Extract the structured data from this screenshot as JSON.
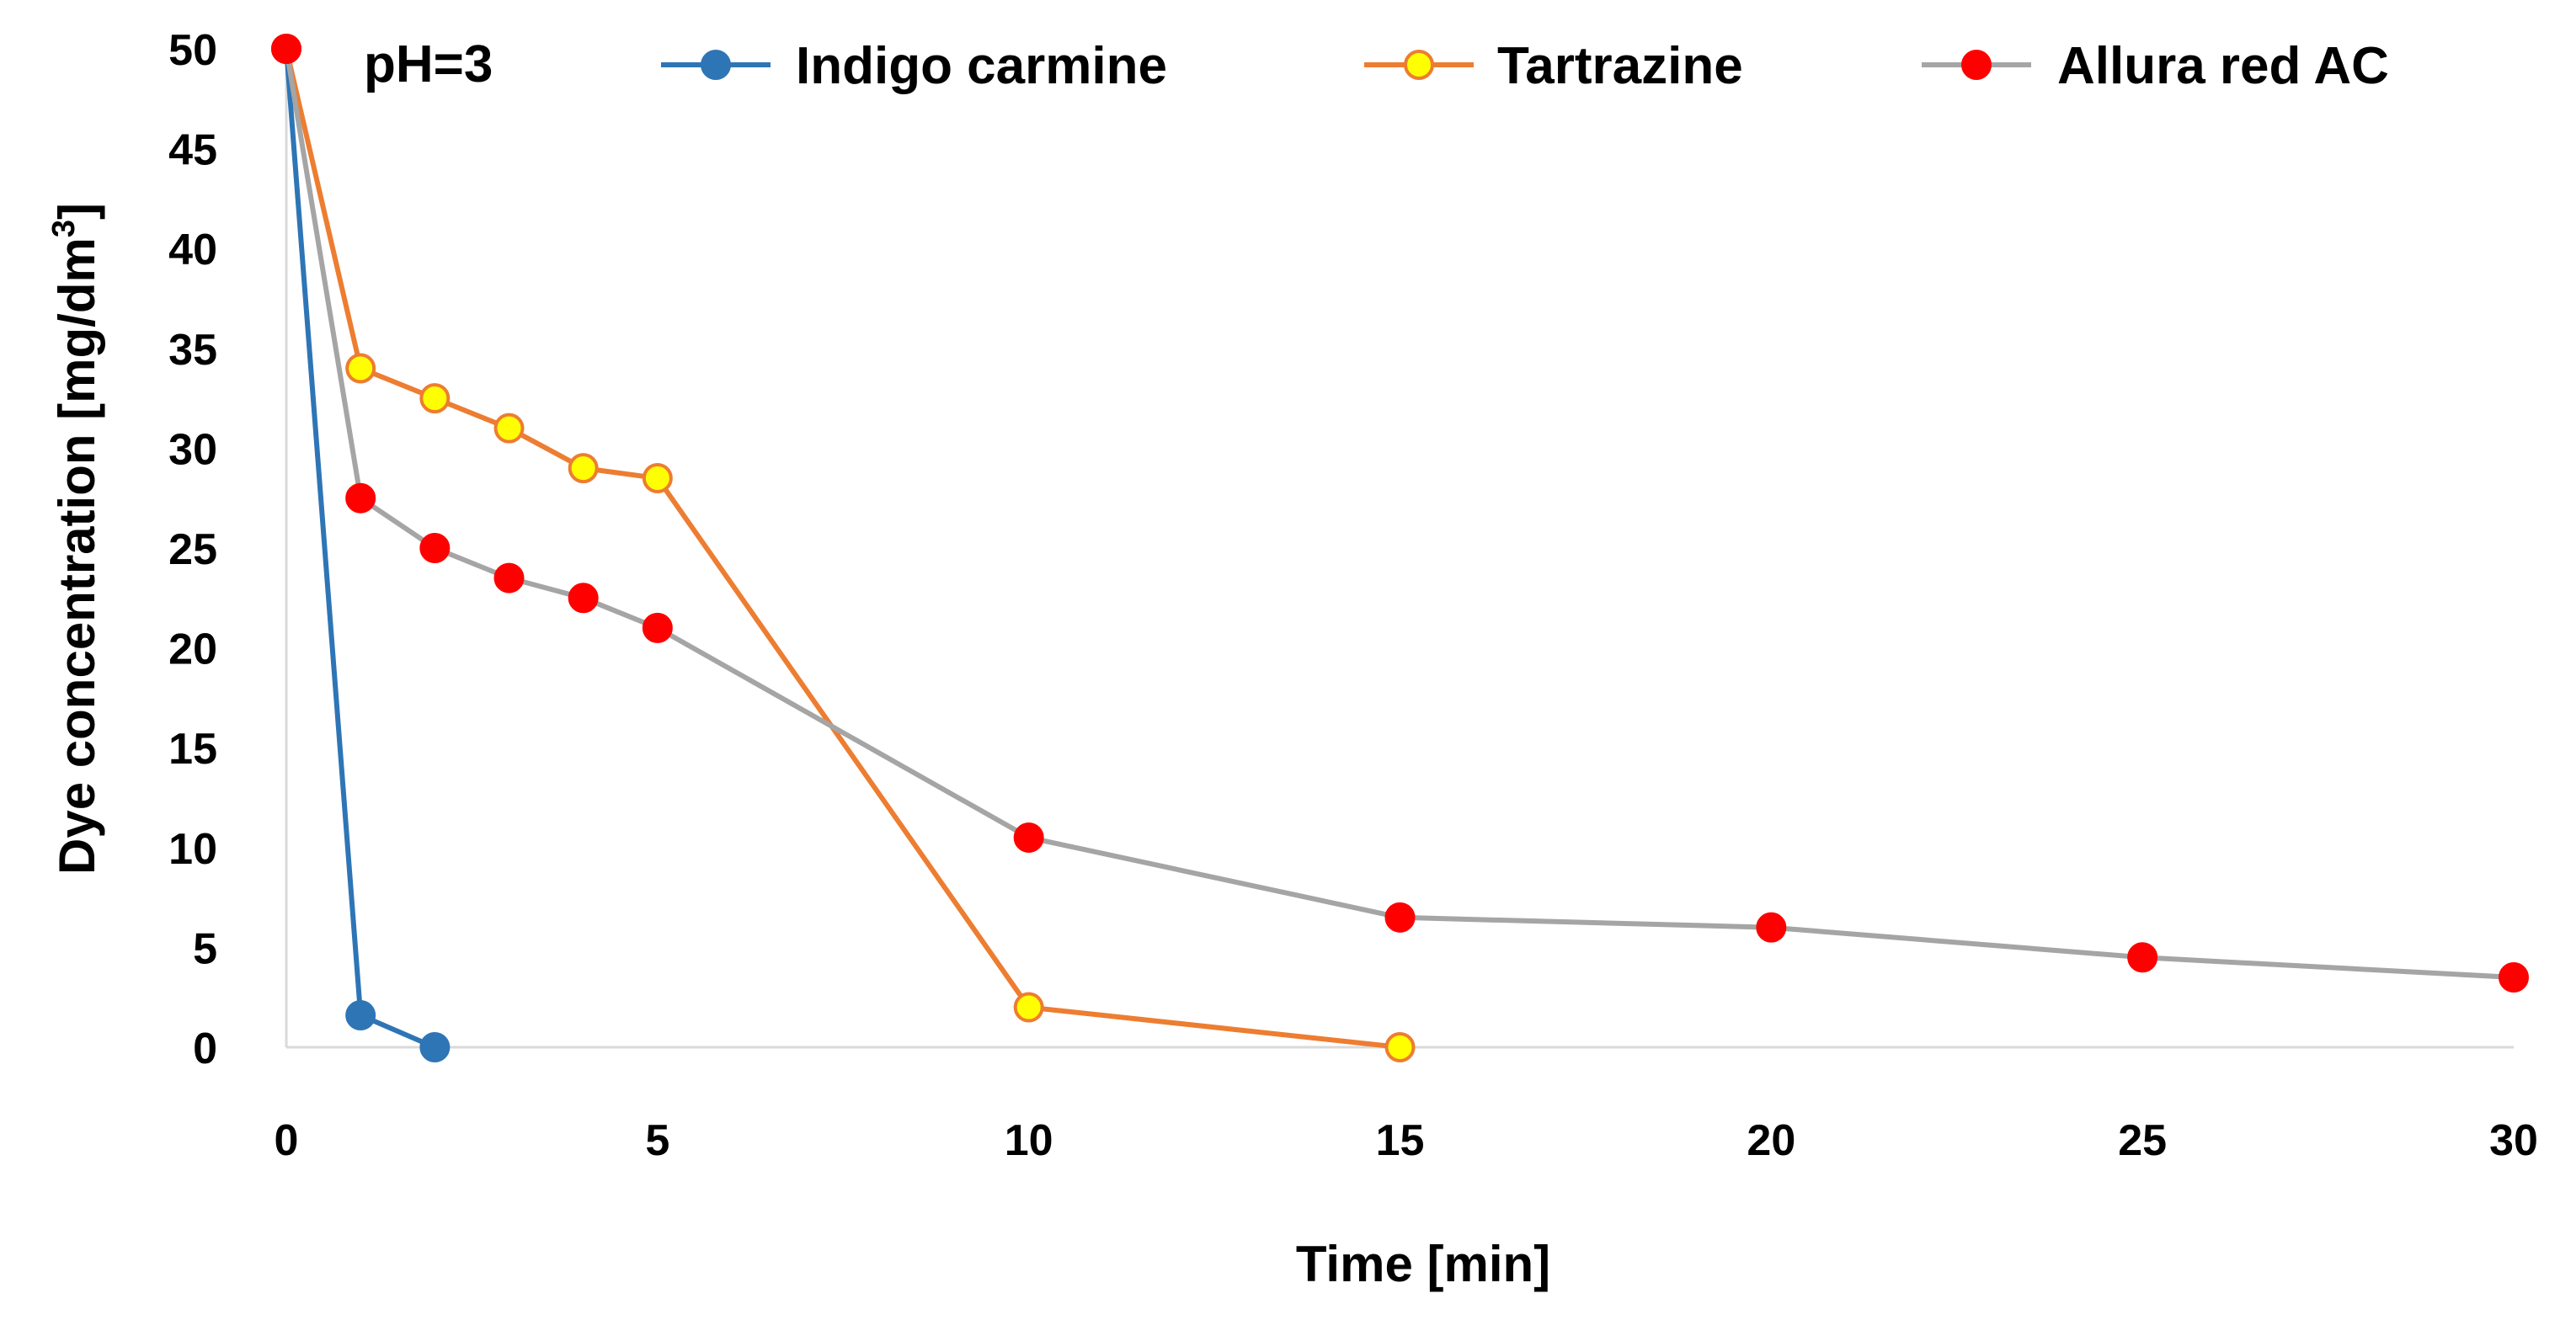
{
  "chart_data": {
    "type": "line",
    "title": "",
    "annotation": "pH=3",
    "xlabel": "Time [min]",
    "ylabel": "Dye concentration [mg/dm",
    "ylabel_superscript": "3",
    "ylabel_suffix": "]",
    "xlim": [
      0,
      30
    ],
    "ylim": [
      0,
      50
    ],
    "x_ticks": [
      "0",
      "5",
      "10",
      "15",
      "20",
      "25",
      "30"
    ],
    "y_ticks": [
      "0",
      "5",
      "10",
      "15",
      "20",
      "25",
      "30",
      "35",
      "40",
      "45",
      "50"
    ],
    "grid": false,
    "legend_position": "top",
    "series": [
      {
        "name": "Indigo carmine",
        "line_color": "#2e75b6",
        "marker_fill": "#2e75b6",
        "marker_edge": "#2e75b6",
        "x": [
          0,
          1,
          2
        ],
        "y": [
          50,
          1.6,
          0
        ]
      },
      {
        "name": "Tartrazine",
        "line_color": "#ed7d31",
        "marker_fill": "#ffff00",
        "marker_edge": "#ed7d31",
        "x": [
          0,
          1,
          2,
          3,
          4,
          5,
          10,
          15
        ],
        "y": [
          50,
          34,
          32.5,
          31,
          29,
          28.5,
          2,
          0
        ]
      },
      {
        "name": "Allura red AC",
        "line_color": "#a5a5a5",
        "marker_fill": "#ff0000",
        "marker_edge": "#ff0000",
        "x": [
          0,
          1,
          2,
          3,
          4,
          5,
          10,
          15,
          20,
          25,
          30
        ],
        "y": [
          50,
          27.5,
          25,
          23.5,
          22.5,
          21,
          10.5,
          6.5,
          6,
          4.5,
          3.5
        ]
      }
    ]
  }
}
